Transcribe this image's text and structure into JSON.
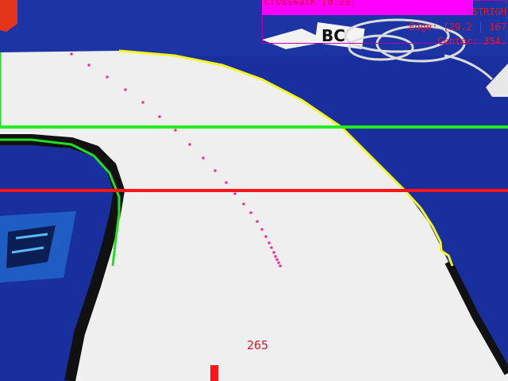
{
  "overlay": {
    "crosswalk_text": "Crosswalk [0.29]",
    "mode_text": "STRIGH",
    "edge_text": "Edge: [29.2 | 167",
    "center_text": "Center: 354.",
    "value_text": "265"
  },
  "colors": {
    "track_surface": "#efefef",
    "floor": "#1a2f9e",
    "edge_left": "#22dd22",
    "edge_right": "#f5f520",
    "guide_line_upper": "#22ee22",
    "guide_line_lower": "#ff1414",
    "path_points": "#ff1a8c",
    "hud_bar": "#ff00ff"
  }
}
